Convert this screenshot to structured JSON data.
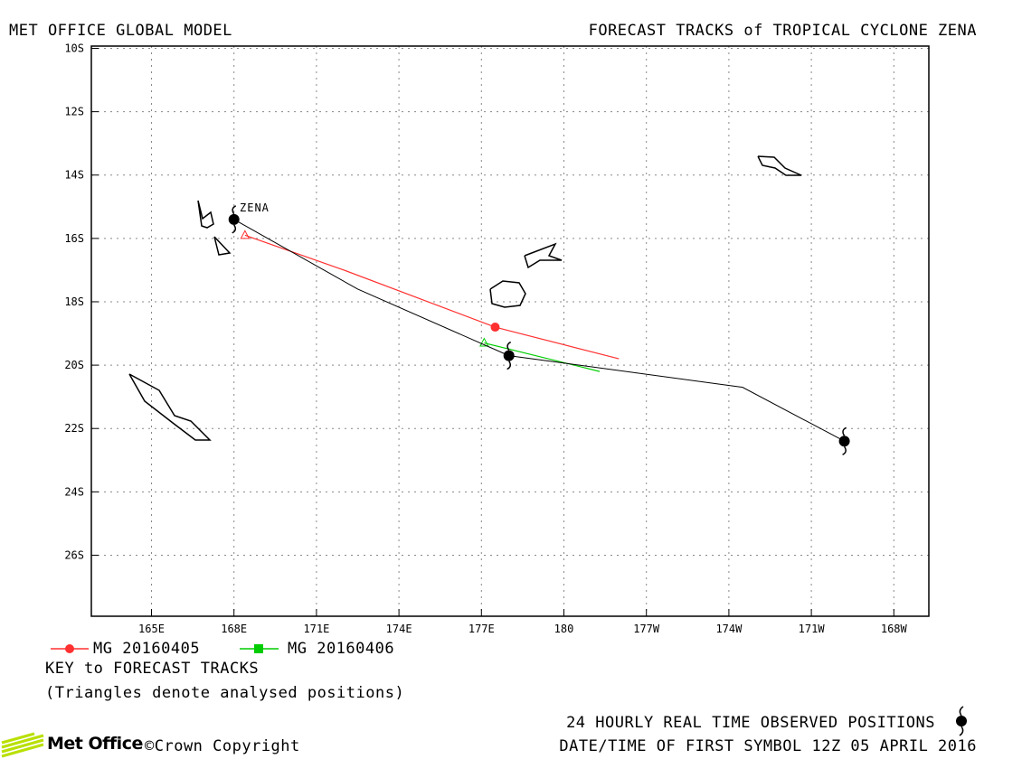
{
  "header": {
    "left_title": "MET OFFICE GLOBAL MODEL",
    "right_title": "FORECAST TRACKS of TROPICAL CYCLONE ZENA"
  },
  "map": {
    "storm_label": "ZENA",
    "lat_ticks": [
      "10S",
      "12S",
      "14S",
      "16S",
      "18S",
      "20S",
      "22S",
      "24S",
      "26S"
    ],
    "lon_ticks": [
      "165E",
      "168E",
      "171E",
      "174E",
      "177E",
      "180",
      "177W",
      "174W",
      "171W",
      "168W"
    ],
    "observed_track": [
      [
        168.0,
        -15.4
      ],
      [
        172.5,
        -17.6
      ],
      [
        178.0,
        -19.7
      ],
      [
        186.5,
        -20.7
      ],
      [
        190.2,
        -22.4
      ]
    ],
    "observed_positions": [
      [
        168.0,
        -15.4
      ],
      [
        178.0,
        -19.7
      ],
      [
        190.2,
        -22.4
      ]
    ],
    "forecast_tracks": [
      {
        "label": "MG 20160405",
        "color": "#ff3030",
        "analysed": [
          168.4,
          -15.9
        ],
        "marker": [
          177.5,
          -18.8
        ],
        "points": [
          [
            168.4,
            -15.9
          ],
          [
            172.0,
            -17.0
          ],
          [
            177.5,
            -18.8
          ],
          [
            182.0,
            -19.8
          ]
        ]
      },
      {
        "label": "MG 20160406",
        "color": "#00cc00",
        "analysed": [
          177.1,
          -19.3
        ],
        "marker": null,
        "points": [
          [
            177.1,
            -19.3
          ],
          [
            181.3,
            -20.2
          ]
        ]
      }
    ]
  },
  "legend": {
    "series_a": "MG 20160405",
    "series_b": "MG 20160406",
    "color_a": "#ff3030",
    "color_b": "#00cc00"
  },
  "key": {
    "title": "KEY to FORECAST TRACKS",
    "note": "(Triangles denote analysed positions)"
  },
  "footer": {
    "observed": "24 HOURLY REAL TIME OBSERVED POSITIONS",
    "datetime": "DATE/TIME OF FIRST SYMBOL 12Z 05 APRIL 2016",
    "brand": "Met Office",
    "copyright": "©Crown Copyright"
  }
}
